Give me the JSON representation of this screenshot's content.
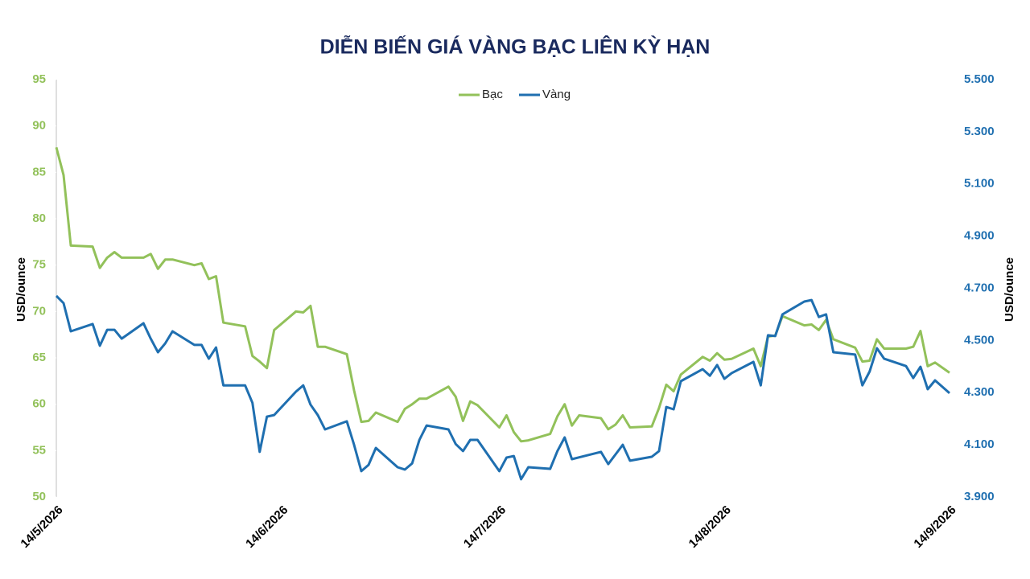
{
  "chart_data": {
    "type": "line",
    "title": "DIỄN BIẾN GIÁ VÀNG BẠC LIÊN KỲ HẠN",
    "y_label": "USD/ounce",
    "y2_label": "USD/ounce",
    "x": [
      "14/5/2026",
      "15/5/2026",
      "16/5/2026",
      "19/5/2026",
      "20/5/2026",
      "21/5/2026",
      "22/5/2026",
      "23/5/2026",
      "26/5/2026",
      "27/5/2026",
      "28/5/2026",
      "29/5/2026",
      "30/5/2026",
      "2/6/2026",
      "3/6/2026",
      "4/6/2026",
      "5/6/2026",
      "6/6/2026",
      "9/6/2026",
      "10/6/2026",
      "11/6/2026",
      "12/6/2026",
      "13/6/2026",
      "16/6/2026",
      "17/6/2026",
      "18/6/2026",
      "19/6/2026",
      "20/6/2026",
      "23/6/2026",
      "24/6/2026",
      "25/6/2026",
      "26/6/2026",
      "27/6/2026",
      "30/6/2026",
      "1/7/2026",
      "2/7/2026",
      "3/7/2026",
      "4/7/2026",
      "7/7/2026",
      "8/7/2026",
      "9/7/2026",
      "10/7/2026",
      "11/7/2026",
      "14/7/2026",
      "15/7/2026",
      "16/7/2026",
      "17/7/2026",
      "18/7/2026",
      "21/7/2026",
      "22/7/2026",
      "23/7/2026",
      "24/7/2026",
      "25/7/2026",
      "28/7/2026",
      "29/7/2026",
      "30/7/2026",
      "31/7/2026",
      "1/8/2026",
      "4/8/2026",
      "5/8/2026",
      "6/8/2026",
      "7/8/2026",
      "8/8/2026",
      "11/8/2026",
      "12/8/2026",
      "13/8/2026",
      "14/8/2026",
      "15/8/2026",
      "18/8/2026",
      "19/8/2026",
      "20/8/2026",
      "21/8/2026",
      "22/8/2026",
      "25/8/2026",
      "26/8/2026",
      "27/8/2026",
      "28/8/2026",
      "29/8/2026",
      "1/9/2026",
      "2/9/2026",
      "3/9/2026",
      "4/9/2026",
      "5/9/2026",
      "8/9/2026",
      "9/9/2026",
      "10/9/2026",
      "11/9/2026",
      "12/9/2026",
      "14/9/2026"
    ],
    "series": [
      {
        "name": "Bạc",
        "color": "#92c15a",
        "axis": "y",
        "values": [
          87.7,
          84.7,
          77.1,
          77.0,
          74.7,
          75.8,
          76.4,
          75.8,
          75.8,
          76.2,
          74.6,
          75.6,
          75.6,
          75.0,
          75.2,
          73.5,
          73.8,
          68.8,
          68.4,
          65.2,
          64.6,
          63.9,
          68.0,
          70.0,
          69.9,
          70.6,
          66.2,
          66.2,
          65.4,
          61.5,
          58.1,
          58.2,
          59.1,
          58.1,
          59.5,
          60.0,
          60.6,
          60.6,
          61.9,
          60.8,
          58.2,
          60.3,
          59.9,
          57.5,
          58.8,
          57.0,
          56.0,
          56.1,
          56.8,
          58.7,
          60.0,
          57.7,
          58.8,
          58.5,
          57.3,
          57.8,
          58.8,
          57.5,
          57.6,
          59.6,
          62.1,
          61.4,
          63.2,
          65.1,
          64.7,
          65.5,
          64.8,
          64.9,
          66.0,
          64.1,
          67.3,
          67.4,
          69.5,
          68.5,
          68.6,
          68.0,
          69.1,
          67.0,
          66.1,
          64.6,
          64.7,
          67.0,
          66.0,
          66.0,
          66.2,
          67.9,
          64.1,
          64.5,
          63.4
        ]
      },
      {
        "name": "Vàng",
        "color": "#1f6fb0",
        "axis": "y2",
        "values": [
          4671,
          4643,
          4535,
          4563,
          4480,
          4541,
          4541,
          4507,
          4566,
          4507,
          4455,
          4489,
          4535,
          4483,
          4483,
          4430,
          4473,
          4328,
          4328,
          4261,
          4073,
          4208,
          4214,
          4304,
          4328,
          4254,
          4214,
          4159,
          4190,
          4100,
          3999,
          4023,
          4088,
          4014,
          4005,
          4029,
          4119,
          4174,
          4159,
          4103,
          4076,
          4119,
          4119,
          3999,
          4051,
          4057,
          3968,
          4014,
          4008,
          4076,
          4128,
          4045,
          4052,
          4073,
          4026,
          4063,
          4100,
          4039,
          4054,
          4076,
          4245,
          4236,
          4344,
          4390,
          4365,
          4406,
          4353,
          4375,
          4418,
          4328,
          4520,
          4517,
          4600,
          4649,
          4655,
          4590,
          4600,
          4455,
          4446,
          4328,
          4381,
          4470,
          4430,
          4402,
          4356,
          4399,
          4313,
          4347,
          4298
        ]
      }
    ],
    "xlim": [
      "14/5/2026",
      "14/9/2026"
    ],
    "xticks": [
      "14/5/2026",
      "14/6/2026",
      "14/7/2026",
      "14/8/2026",
      "14/9/2026"
    ],
    "ylim": [
      50,
      95
    ],
    "yticks": [
      50,
      55,
      60,
      65,
      70,
      75,
      80,
      85,
      90,
      95
    ],
    "y2lim": [
      3900,
      5500
    ],
    "y2ticks": [
      {
        "value": 3900,
        "label": "3.900"
      },
      {
        "value": 4100,
        "label": "4.100"
      },
      {
        "value": 4300,
        "label": "4.300"
      },
      {
        "value": 4500,
        "label": "4.500"
      },
      {
        "value": 4700,
        "label": "4.700"
      },
      {
        "value": 4900,
        "label": "4.900"
      },
      {
        "value": 5100,
        "label": "5.100"
      },
      {
        "value": 5300,
        "label": "5.300"
      },
      {
        "value": 5500,
        "label": "5.500"
      }
    ],
    "legend": "top"
  }
}
